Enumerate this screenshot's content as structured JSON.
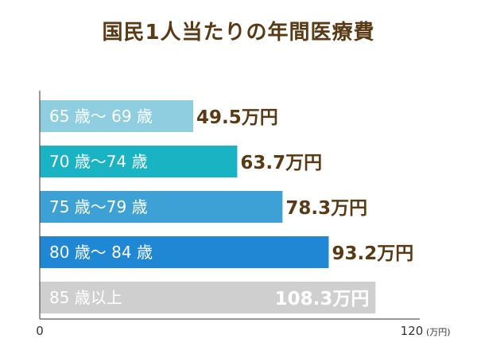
{
  "chart_data": {
    "type": "bar",
    "orientation": "horizontal",
    "title": "国民1人当たりの年間医療費",
    "categories": [
      "65 歳～ 69 歳",
      "70 歳～74 歳",
      "75 歳～79 歳",
      "80 歳～ 84 歳",
      "85 歳以上"
    ],
    "values": [
      49.5,
      63.7,
      78.3,
      93.2,
      108.3
    ],
    "value_labels": [
      "49.5万円",
      "63.7万円",
      "78.3万円",
      "93.2万円",
      "108.3万円"
    ],
    "unit": "万円",
    "xlim": [
      0,
      120
    ],
    "tick_labels": [
      "0",
      "120"
    ],
    "axis_unit_label": "(万円)",
    "grid": false,
    "colors": [
      "#8fcde0",
      "#19b3c4",
      "#3ea1d6",
      "#1f87d3",
      "#cfcfcf"
    ],
    "label_color": "#5a3a14",
    "title_color": "#5a3a14"
  }
}
